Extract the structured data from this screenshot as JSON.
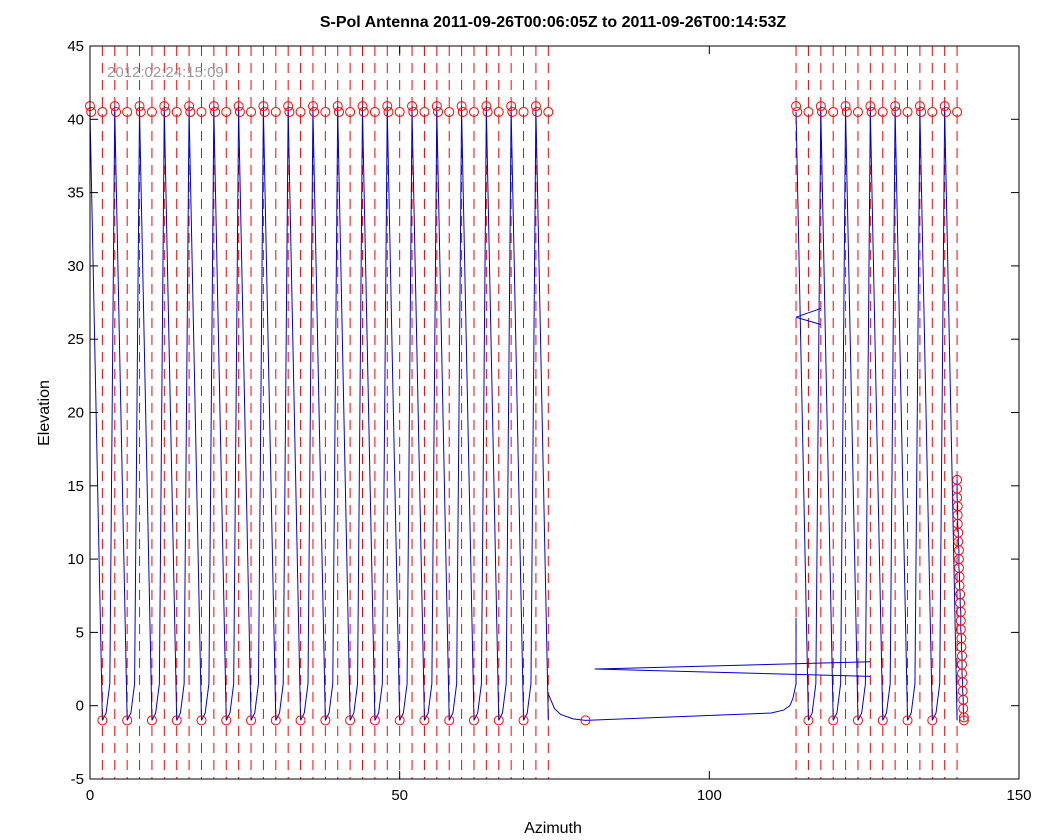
{
  "chart_data": {
    "type": "line",
    "title": "S-Pol Antenna 2011-09-26T00:06:05Z to 2011-09-26T00:14:53Z",
    "xlabel": "Azimuth",
    "ylabel": "Elevation",
    "xlim": [
      0,
      150
    ],
    "ylim": [
      -5,
      45
    ],
    "xticks": [
      0,
      50,
      100,
      150
    ],
    "yticks": [
      -5,
      0,
      5,
      10,
      15,
      20,
      25,
      30,
      35,
      40,
      45
    ],
    "grid": false,
    "annotation": "2012:02:24:15:09",
    "colors": {
      "trace": "#0000cc",
      "markers": "#ff0000",
      "verticals": "#ff0000",
      "axes": "#000000"
    },
    "sweep_tops": [
      0,
      4,
      8,
      12,
      16,
      20,
      24,
      28,
      32,
      36,
      40,
      44,
      48,
      52,
      56,
      60,
      64,
      68,
      72,
      114,
      118,
      122,
      126,
      130,
      134,
      138
    ],
    "sweep_bottoms": [
      2,
      6,
      10,
      14,
      18,
      22,
      26,
      30,
      34,
      38,
      42,
      46,
      50,
      54,
      58,
      62,
      66,
      70,
      74,
      116,
      120,
      124,
      128,
      132,
      136,
      140
    ],
    "top_markers": [
      [
        0,
        40.9
      ],
      [
        0.2,
        40.5
      ],
      [
        2,
        40.5
      ],
      [
        4,
        40.9
      ],
      [
        4.2,
        40.5
      ],
      [
        6,
        40.5
      ],
      [
        8,
        40.9
      ],
      [
        8.2,
        40.5
      ],
      [
        10,
        40.5
      ],
      [
        12,
        40.9
      ],
      [
        12.2,
        40.5
      ],
      [
        14,
        40.5
      ],
      [
        16,
        40.9
      ],
      [
        16.2,
        40.5
      ],
      [
        18,
        40.5
      ],
      [
        20,
        40.9
      ],
      [
        20.2,
        40.5
      ],
      [
        22,
        40.5
      ],
      [
        24,
        40.9
      ],
      [
        24.2,
        40.5
      ],
      [
        26,
        40.5
      ],
      [
        28,
        40.9
      ],
      [
        28.2,
        40.5
      ],
      [
        30,
        40.5
      ],
      [
        32,
        40.9
      ],
      [
        32.2,
        40.5
      ],
      [
        34,
        40.5
      ],
      [
        36,
        40.9
      ],
      [
        36.2,
        40.5
      ],
      [
        38,
        40.5
      ],
      [
        40,
        40.9
      ],
      [
        40.2,
        40.5
      ],
      [
        42,
        40.5
      ],
      [
        44,
        40.9
      ],
      [
        44.2,
        40.5
      ],
      [
        46,
        40.5
      ],
      [
        48,
        40.9
      ],
      [
        48.2,
        40.5
      ],
      [
        50,
        40.5
      ],
      [
        52,
        40.9
      ],
      [
        52.2,
        40.5
      ],
      [
        54,
        40.5
      ],
      [
        56,
        40.9
      ],
      [
        56.2,
        40.5
      ],
      [
        58,
        40.5
      ],
      [
        60,
        40.9
      ],
      [
        60.2,
        40.5
      ],
      [
        62,
        40.5
      ],
      [
        64,
        40.9
      ],
      [
        64.2,
        40.5
      ],
      [
        66,
        40.5
      ],
      [
        68,
        40.9
      ],
      [
        68.2,
        40.5
      ],
      [
        70,
        40.5
      ],
      [
        72,
        40.9
      ],
      [
        72.2,
        40.5
      ],
      [
        74,
        40.5
      ],
      [
        114,
        40.9
      ],
      [
        114.2,
        40.5
      ],
      [
        116,
        40.5
      ],
      [
        118,
        40.9
      ],
      [
        118.2,
        40.5
      ],
      [
        120,
        40.5
      ],
      [
        122,
        40.9
      ],
      [
        122.2,
        40.5
      ],
      [
        124,
        40.5
      ],
      [
        126,
        40.9
      ],
      [
        126.2,
        40.5
      ],
      [
        128,
        40.5
      ],
      [
        130,
        40.9
      ],
      [
        130.2,
        40.5
      ],
      [
        132,
        40.5
      ],
      [
        134,
        40.9
      ],
      [
        134.2,
        40.5
      ],
      [
        136,
        40.5
      ],
      [
        138,
        40.9
      ],
      [
        138.2,
        40.5
      ],
      [
        140,
        40.5
      ]
    ],
    "bottom_markers": [
      [
        2,
        -1
      ],
      [
        6,
        -1
      ],
      [
        10,
        -1
      ],
      [
        14,
        -1
      ],
      [
        18,
        -1
      ],
      [
        22,
        -1
      ],
      [
        26,
        -1
      ],
      [
        30,
        -1
      ],
      [
        34,
        -1
      ],
      [
        38,
        -1
      ],
      [
        42,
        -1
      ],
      [
        46,
        -1
      ],
      [
        50,
        -1
      ],
      [
        54,
        -1
      ],
      [
        58,
        -1
      ],
      [
        62,
        -1
      ],
      [
        66,
        -1
      ],
      [
        70,
        -1
      ],
      [
        80,
        -1
      ],
      [
        116,
        -1
      ],
      [
        120,
        -1
      ],
      [
        124,
        -1
      ],
      [
        128,
        -1
      ],
      [
        132,
        -1
      ],
      [
        136,
        -1
      ]
    ],
    "column_markers": [
      [
        140.0,
        15.4
      ],
      [
        140.0,
        14.8
      ],
      [
        140.0,
        14.2
      ],
      [
        140.1,
        13.6
      ],
      [
        140.1,
        13.0
      ],
      [
        140.1,
        12.4
      ],
      [
        140.2,
        11.8
      ],
      [
        140.2,
        11.2
      ],
      [
        140.3,
        10.6
      ],
      [
        140.3,
        10.0
      ],
      [
        140.3,
        9.4
      ],
      [
        140.4,
        8.8
      ],
      [
        140.4,
        8.2
      ],
      [
        140.5,
        7.6
      ],
      [
        140.5,
        7.0
      ],
      [
        140.6,
        6.4
      ],
      [
        140.6,
        5.8
      ],
      [
        140.6,
        5.2
      ],
      [
        140.7,
        4.6
      ],
      [
        140.7,
        4.0
      ],
      [
        140.8,
        3.4
      ],
      [
        140.8,
        2.8
      ],
      [
        140.8,
        2.2
      ],
      [
        140.9,
        1.6
      ],
      [
        140.9,
        1.0
      ],
      [
        141.0,
        0.4
      ],
      [
        141.0,
        -0.2
      ],
      [
        141.1,
        -0.8
      ],
      [
        141.1,
        -1.0
      ]
    ],
    "transit_path": [
      [
        74,
        0.8
      ],
      [
        74.5,
        0.3
      ],
      [
        75,
        -0.2
      ],
      [
        76,
        -0.6
      ],
      [
        78,
        -0.9
      ],
      [
        80,
        -1
      ],
      [
        110,
        -0.5
      ],
      [
        112,
        -0.3
      ],
      [
        113,
        0
      ],
      [
        113.5,
        0.5
      ],
      [
        114,
        1.5
      ],
      [
        114,
        6
      ]
    ],
    "extra_lines": [
      [
        [
          81.5,
          2.5
        ],
        [
          126,
          3
        ]
      ],
      [
        [
          81.5,
          2.5
        ],
        [
          126,
          2
        ]
      ],
      [
        [
          114,
          26.5
        ],
        [
          118,
          27.1
        ]
      ],
      [
        [
          114,
          26.5
        ],
        [
          118,
          26
        ]
      ]
    ]
  }
}
